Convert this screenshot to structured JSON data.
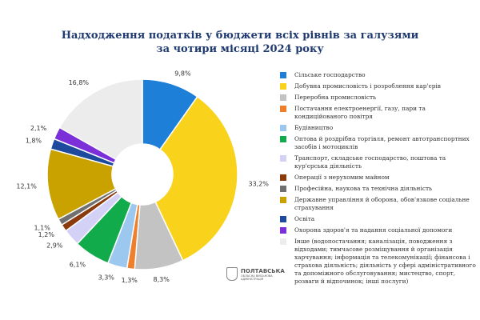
{
  "chart_data": {
    "type": "pie",
    "donut": true,
    "title": "Надходження податків у бюджети всіх рівнів за галузями за чотири місяці 2024 року",
    "title_lines": [
      "Надходження податків у бюджети всіх рівнів за галузями",
      "за чотири місяці 2024 року"
    ],
    "unit": "%",
    "legend_position": "right",
    "slices": [
      {
        "label": "Сільське господарство",
        "value": 9.8,
        "display": "9,8%",
        "color": "#1e7fd9"
      },
      {
        "label": "Добувна промисловість і розроблення кар'єрів",
        "value": 33.2,
        "display": "33,2%",
        "color": "#f9d21c"
      },
      {
        "label": "Переробна промисловість",
        "value": 8.3,
        "display": "8,3%",
        "color": "#c3c3c3"
      },
      {
        "label": "Постачання електроенергії, газу, пари та кондиційованого повітря",
        "value": 1.3,
        "display": "1,3%",
        "color": "#ee7f2d"
      },
      {
        "label": "Будівництво",
        "value": 3.3,
        "display": "3,3%",
        "color": "#9cc7ee"
      },
      {
        "label": "Оптова й роздрібна торгівля, ремонт автотранспортних засобів і мотоциклів",
        "value": 6.1,
        "display": "6,1%",
        "color": "#12ab4c"
      },
      {
        "label": "Транспорт, складське господарство, поштова та кур'єрська діяльність",
        "value": 2.9,
        "display": "2,9%",
        "color": "#d4d1f7"
      },
      {
        "label": "Операції з нерухомим майном",
        "value": 1.2,
        "display": "1,2%",
        "color": "#8a3a0c"
      },
      {
        "label": "Професійна, наукова та технічна діяльність",
        "value": 1.1,
        "display": "1,1%",
        "color": "#707070"
      },
      {
        "label": "Державне управління й оборона, обов'язкове соціальне страхування",
        "value": 12.1,
        "display": "12,1%",
        "color": "#c9a200"
      },
      {
        "label": "Освіта",
        "value": 1.8,
        "display": "1,8%",
        "color": "#1d4a9c"
      },
      {
        "label": "Охорона здоров'я та надання соціальної допомоги",
        "value": 2.1,
        "display": "2,1%",
        "color": "#7b2fd8"
      },
      {
        "label": "Інше (водопостачання; каналізація, поводження з відходами; тимчасове розміщування й організація харчування; інформація та телекомунікації; фінансова і страхова діяльність; діяльність у сфері адміністративного та допоміжного обслуговування; мистецтво, спорт, розваги й відпочинок; інші послуги)",
        "value": 16.8,
        "display": "16,8%",
        "color": "#ececec"
      }
    ]
  },
  "logo": {
    "line1": "ПОЛТАВСЬКА",
    "line2": "ОБЛАСНА ВІЙСЬКОВА",
    "line3": "АДМІНІСТРАЦІЯ"
  }
}
